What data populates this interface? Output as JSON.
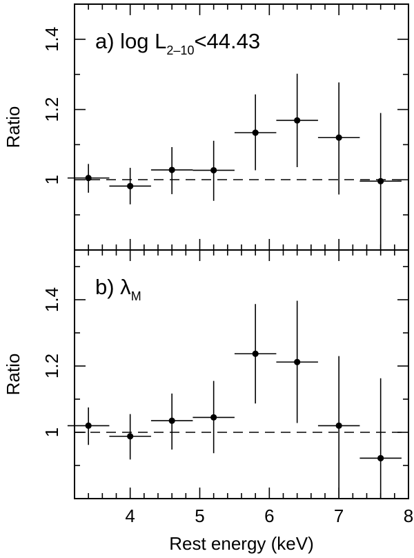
{
  "chart_data": [
    {
      "type": "scatter",
      "panel_label_prefix": "a) log L",
      "panel_label_subscript": "2–10",
      "panel_label_suffix": "<44.43",
      "ylabel": "Ratio",
      "xlabel": "",
      "xlim": [
        3.2,
        8.0
      ],
      "ylim": [
        0.8,
        1.5
      ],
      "x_ticks": [
        4,
        5,
        6,
        7,
        8
      ],
      "x_tick_labels": [],
      "y_ticks": [
        1.0,
        1.2,
        1.4
      ],
      "y_tick_labels": [
        "1",
        "1.2",
        "1.4"
      ],
      "reference_line": 1.0,
      "points": [
        {
          "x": 3.4,
          "y": 1.005,
          "xerr": 0.3,
          "ylow": 0.963,
          "yhigh": 1.045
        },
        {
          "x": 4.0,
          "y": 0.982,
          "xerr": 0.3,
          "ylow": 0.93,
          "yhigh": 1.034
        },
        {
          "x": 4.6,
          "y": 1.028,
          "xerr": 0.3,
          "ylow": 0.959,
          "yhigh": 1.093
        },
        {
          "x": 5.2,
          "y": 1.027,
          "xerr": 0.3,
          "ylow": 0.94,
          "yhigh": 1.111
        },
        {
          "x": 5.8,
          "y": 1.134,
          "xerr": 0.3,
          "ylow": 1.027,
          "yhigh": 1.243
        },
        {
          "x": 6.4,
          "y": 1.169,
          "xerr": 0.3,
          "ylow": 1.036,
          "yhigh": 1.302
        },
        {
          "x": 7.0,
          "y": 1.12,
          "xerr": 0.3,
          "ylow": 0.958,
          "yhigh": 1.277
        },
        {
          "x": 7.6,
          "y": 0.996,
          "xerr": 0.3,
          "ylow": 0.8,
          "yhigh": 1.19
        }
      ]
    },
    {
      "type": "scatter",
      "panel_label_prefix": "b) λ",
      "panel_label_subscript": "M",
      "panel_label_suffix": "",
      "ylabel": "Ratio",
      "xlabel": "Rest energy (keV)",
      "xlim": [
        3.2,
        8.0
      ],
      "ylim": [
        0.8,
        1.55
      ],
      "x_ticks": [
        4,
        5,
        6,
        7,
        8
      ],
      "x_tick_labels": [
        "4",
        "5",
        "6",
        "7",
        "8"
      ],
      "y_ticks": [
        1.0,
        1.2,
        1.4
      ],
      "y_tick_labels": [
        "1",
        "1.2",
        "1.4"
      ],
      "reference_line": 1.0,
      "points": [
        {
          "x": 3.4,
          "y": 1.02,
          "xerr": 0.3,
          "ylow": 0.962,
          "yhigh": 1.075
        },
        {
          "x": 4.0,
          "y": 0.988,
          "xerr": 0.3,
          "ylow": 0.918,
          "yhigh": 1.055
        },
        {
          "x": 4.6,
          "y": 1.035,
          "xerr": 0.3,
          "ylow": 0.948,
          "yhigh": 1.117
        },
        {
          "x": 5.2,
          "y": 1.045,
          "xerr": 0.3,
          "ylow": 0.937,
          "yhigh": 1.155
        },
        {
          "x": 5.8,
          "y": 1.237,
          "xerr": 0.3,
          "ylow": 1.087,
          "yhigh": 1.387
        },
        {
          "x": 6.4,
          "y": 1.212,
          "xerr": 0.3,
          "ylow": 1.028,
          "yhigh": 1.397
        },
        {
          "x": 7.0,
          "y": 1.02,
          "xerr": 0.3,
          "ylow": 0.8,
          "yhigh": 1.23
        },
        {
          "x": 7.6,
          "y": 0.922,
          "xerr": 0.3,
          "ylow": 0.8,
          "yhigh": 1.163
        }
      ]
    }
  ]
}
